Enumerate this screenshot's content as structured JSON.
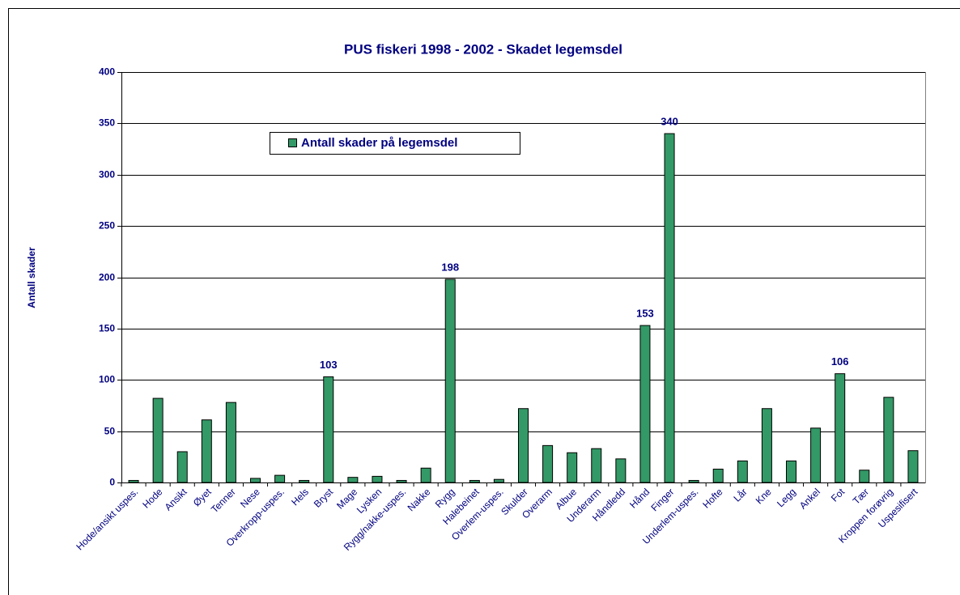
{
  "chart_data": {
    "type": "bar",
    "title": "PUS fiskeri 1998 - 2002 - Skadet legemsdel",
    "y_label": "Antall skader",
    "legend": "Antall skader på legemsdel",
    "color": "#339966",
    "categories": [
      "Hode/ansikt uspes.",
      "Hode",
      "Ansikt",
      "Øyet",
      "Tenner",
      "Nese",
      "Overkropp-uspes.",
      "Hels",
      "Bryst",
      "Mage",
      "Lysken",
      "Rygg/nakke-uspes.",
      "Nakke",
      "Rygg",
      "Halebeinet",
      "Overlem-uspes.",
      "Skulder",
      "Overarm",
      "Albue",
      "Underarm",
      "Håndledd",
      "Hånd",
      "Finger",
      "Underlem-uspes.",
      "Hofte",
      "Lår",
      "Kne",
      "Legg",
      "Ankel",
      "Fot",
      "Tær",
      "Kroppen forøvrig",
      "Uspesifisert"
    ],
    "values": [
      2,
      82,
      30,
      61,
      78,
      4,
      7,
      2,
      103,
      5,
      6,
      2,
      14,
      198,
      2,
      3,
      72,
      36,
      29,
      33,
      23,
      153,
      340,
      2,
      13,
      21,
      72,
      21,
      53,
      106,
      12,
      83,
      31
    ],
    "value_labels": [
      null,
      null,
      null,
      null,
      null,
      null,
      null,
      null,
      "103",
      null,
      null,
      null,
      null,
      "198",
      null,
      null,
      null,
      null,
      null,
      null,
      null,
      "153",
      "340",
      null,
      null,
      null,
      null,
      null,
      null,
      "106",
      null,
      null,
      null
    ],
    "ylim": [
      0,
      400
    ],
    "yticks": [
      0,
      50,
      100,
      150,
      200,
      250,
      300,
      350,
      400
    ],
    "grid": true
  }
}
